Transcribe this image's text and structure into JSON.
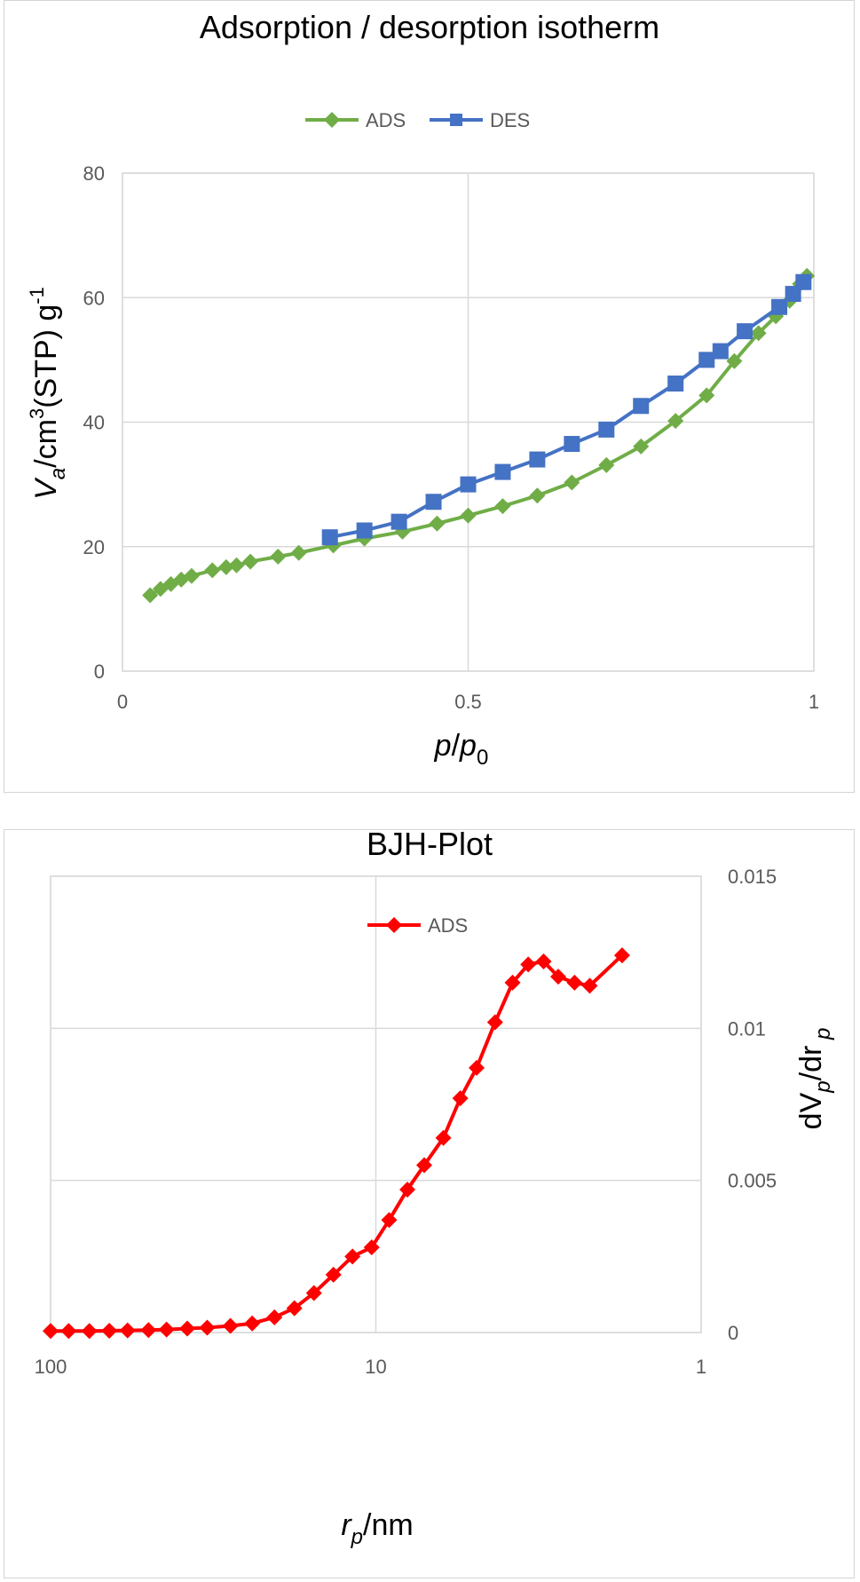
{
  "chart_data": [
    {
      "type": "line",
      "title": "Adsorption / desorption isotherm",
      "xlabel_parts": [
        {
          "text": "p",
          "style": "italic"
        },
        {
          "text": "/",
          "style": "normal"
        },
        {
          "text": "p",
          "style": "italic"
        },
        {
          "text": "0",
          "style": "sub"
        }
      ],
      "ylabel_parts": [
        {
          "text": "V",
          "style": "italic"
        },
        {
          "text": "a",
          "style": "sub-italic"
        },
        {
          "text": "/cm",
          "style": "normal"
        },
        {
          "text": "3",
          "style": "sup"
        },
        {
          "text": "(STP) g",
          "style": "normal"
        },
        {
          "text": "-1",
          "style": "sup"
        }
      ],
      "xlim": [
        0,
        1
      ],
      "ylim": [
        0,
        80
      ],
      "x_ticks": [
        {
          "value": 0,
          "label": "0"
        },
        {
          "value": 0.5,
          "label": "0.5"
        },
        {
          "value": 1,
          "label": "1"
        }
      ],
      "y_ticks": [
        {
          "value": 0,
          "label": "0"
        },
        {
          "value": 20,
          "label": "20"
        },
        {
          "value": 40,
          "label": "40"
        },
        {
          "value": 60,
          "label": "60"
        },
        {
          "value": 80,
          "label": "80"
        }
      ],
      "legend_position": "top-center",
      "series": [
        {
          "name": "ADS",
          "color": "#70ad47",
          "marker": "diamond",
          "points": [
            [
              0.04,
              12.2
            ],
            [
              0.055,
              13.2
            ],
            [
              0.07,
              14.0
            ],
            [
              0.085,
              14.7
            ],
            [
              0.1,
              15.3
            ],
            [
              0.13,
              16.2
            ],
            [
              0.15,
              16.7
            ],
            [
              0.165,
              17.0
            ],
            [
              0.185,
              17.6
            ],
            [
              0.225,
              18.4
            ],
            [
              0.255,
              19.0
            ],
            [
              0.305,
              20.2
            ],
            [
              0.35,
              21.3
            ],
            [
              0.405,
              22.4
            ],
            [
              0.455,
              23.7
            ],
            [
              0.5,
              25.0
            ],
            [
              0.55,
              26.5
            ],
            [
              0.6,
              28.2
            ],
            [
              0.65,
              30.3
            ],
            [
              0.7,
              33.1
            ],
            [
              0.75,
              36.1
            ],
            [
              0.8,
              40.2
            ],
            [
              0.845,
              44.3
            ],
            [
              0.885,
              49.8
            ],
            [
              0.92,
              54.3
            ],
            [
              0.945,
              57.0
            ],
            [
              0.965,
              59.5
            ],
            [
              0.98,
              62.2
            ],
            [
              0.99,
              63.5
            ]
          ]
        },
        {
          "name": "DES",
          "color": "#4472c4",
          "marker": "square",
          "points": [
            [
              0.985,
              62.5
            ],
            [
              0.97,
              60.6
            ],
            [
              0.95,
              58.5
            ],
            [
              0.9,
              54.6
            ],
            [
              0.865,
              51.4
            ],
            [
              0.845,
              50.0
            ],
            [
              0.8,
              46.2
            ],
            [
              0.75,
              42.6
            ],
            [
              0.7,
              38.8
            ],
            [
              0.65,
              36.5
            ],
            [
              0.6,
              34.0
            ],
            [
              0.55,
              32.0
            ],
            [
              0.5,
              30.0
            ],
            [
              0.45,
              27.2
            ],
            [
              0.4,
              24.0
            ],
            [
              0.35,
              22.6
            ],
            [
              0.3,
              21.5
            ]
          ]
        }
      ]
    },
    {
      "type": "line",
      "title": "BJH-Plot",
      "x_scale": "log",
      "x_reversed": true,
      "xlabel_parts": [
        {
          "text": "r",
          "style": "italic"
        },
        {
          "text": "p",
          "style": "sub-italic"
        },
        {
          "text": "/nm",
          "style": "normal"
        }
      ],
      "ylabel_parts": [
        {
          "text": "dV",
          "style": "normal"
        },
        {
          "text": "p",
          "style": "sub-italic"
        },
        {
          "text": "/dr",
          "style": "normal"
        },
        {
          "text": " p",
          "style": "sub-italic"
        }
      ],
      "xlim": [
        100,
        1
      ],
      "ylim": [
        0,
        0.015
      ],
      "x_ticks": [
        {
          "value": 100,
          "label": "100"
        },
        {
          "value": 10,
          "label": "10"
        },
        {
          "value": 1,
          "label": "1"
        }
      ],
      "y_ticks": [
        {
          "value": 0,
          "label": "0"
        },
        {
          "value": 0.005,
          "label": "0.005"
        },
        {
          "value": 0.01,
          "label": "0.01"
        },
        {
          "value": 0.015,
          "label": "0.015"
        }
      ],
      "y_axis_side": "right",
      "legend_position": "top-center",
      "series": [
        {
          "name": "ADS",
          "color": "#ff0000",
          "marker": "diamond",
          "points": [
            [
              100,
              5e-05
            ],
            [
              88,
              5e-05
            ],
            [
              76,
              5e-05
            ],
            [
              66,
              6e-05
            ],
            [
              58,
              7e-05
            ],
            [
              50,
              8e-05
            ],
            [
              44,
              0.0001
            ],
            [
              38,
              0.00013
            ],
            [
              33,
              0.00016
            ],
            [
              28,
              0.00022
            ],
            [
              24,
              0.0003
            ],
            [
              20.5,
              0.0005
            ],
            [
              17.8,
              0.0008
            ],
            [
              15.5,
              0.0013
            ],
            [
              13.5,
              0.0019
            ],
            [
              11.8,
              0.0025
            ],
            [
              10.3,
              0.0028
            ],
            [
              9.1,
              0.0037
            ],
            [
              8.0,
              0.0047
            ],
            [
              7.1,
              0.0055
            ],
            [
              6.2,
              0.0064
            ],
            [
              5.5,
              0.0077
            ],
            [
              4.9,
              0.0087
            ],
            [
              4.3,
              0.0102
            ],
            [
              3.8,
              0.0115
            ],
            [
              3.4,
              0.0121
            ],
            [
              3.05,
              0.0122
            ],
            [
              2.75,
              0.0117
            ],
            [
              2.45,
              0.0115
            ],
            [
              2.2,
              0.0114
            ],
            [
              1.75,
              0.0124
            ]
          ]
        }
      ]
    }
  ]
}
